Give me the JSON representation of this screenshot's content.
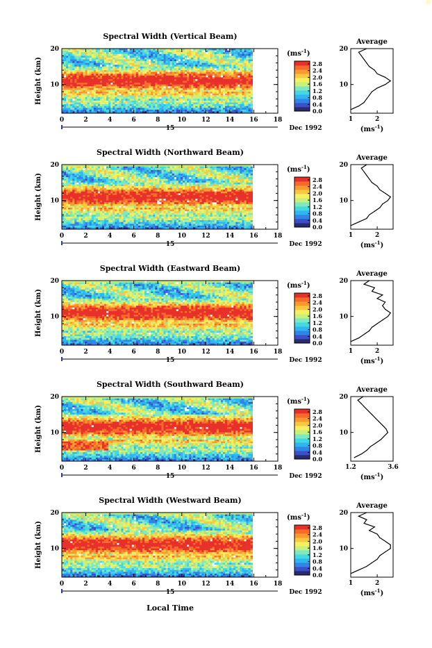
{
  "figure": {
    "xlabel": "Local Time",
    "date_label": "Dec 1992",
    "day_label": "15",
    "cbar_unit": "(ms",
    "cbar_unit_exp": "-1",
    "cbar_unit_close": ")",
    "avg_title": "Average",
    "avg_unit": "(ms",
    "avg_unit_exp": "-1",
    "avg_unit_close": ")",
    "ylabel": "Height (km)"
  },
  "colorbar": {
    "ticks": [
      "2.8",
      "2.4",
      "2.0",
      "1.6",
      "1.2",
      "0.8",
      "0.4",
      "0.0"
    ],
    "colors": [
      "#2a2a6e",
      "#3b4fc8",
      "#2f86e6",
      "#2fb6f0",
      "#44d8e0",
      "#7fe8c0",
      "#c8f07a",
      "#f4f060",
      "#f8c840",
      "#f89a30",
      "#f86a2a",
      "#e8302a"
    ]
  },
  "chart_data": [
    {
      "type": "heatmap",
      "title": "Spectral Width (Vertical Beam)",
      "x_range": [
        0,
        18
      ],
      "x_ticks": [
        "0",
        "2",
        "4",
        "6",
        "8",
        "10",
        "12",
        "14",
        "16",
        "18"
      ],
      "y_range": [
        2,
        20
      ],
      "y_ticks": [
        "10",
        "20"
      ],
      "color_range": [
        0.0,
        3.0
      ],
      "avg_profile": {
        "type": "line",
        "xlim": [
          1,
          2.6
        ],
        "x_ticks": [
          "1",
          "2"
        ],
        "y_ticks": [
          "10",
          "20"
        ],
        "height": [
          3,
          4,
          5,
          6,
          7,
          8,
          9,
          10,
          11,
          12,
          13,
          14,
          15,
          16,
          17,
          18,
          19,
          20
        ],
        "value": [
          1.0,
          1.3,
          1.5,
          1.6,
          1.7,
          1.8,
          2.0,
          2.3,
          2.5,
          2.3,
          2.0,
          1.9,
          1.7,
          1.6,
          1.5,
          1.4,
          1.3,
          1.6
        ]
      }
    },
    {
      "type": "heatmap",
      "title": "Spectral Width (Northward Beam)",
      "x_range": [
        0,
        18
      ],
      "x_ticks": [
        "0",
        "2",
        "4",
        "6",
        "8",
        "10",
        "12",
        "14",
        "16",
        "18"
      ],
      "y_range": [
        2,
        20
      ],
      "y_ticks": [
        "10",
        "20"
      ],
      "color_range": [
        0.0,
        3.0
      ],
      "avg_profile": {
        "type": "line",
        "xlim": [
          1,
          2.6
        ],
        "x_ticks": [
          "1",
          "2"
        ],
        "y_ticks": [
          "10",
          "20"
        ],
        "height": [
          3,
          4,
          5,
          6,
          7,
          8,
          9,
          10,
          11,
          12,
          13,
          14,
          15,
          16,
          17,
          18,
          19,
          20
        ],
        "value": [
          1.0,
          1.3,
          1.6,
          1.7,
          1.9,
          2.1,
          2.2,
          2.4,
          2.5,
          2.3,
          2.1,
          2.0,
          1.8,
          1.7,
          1.6,
          1.5,
          1.4,
          1.6
        ]
      }
    },
    {
      "type": "heatmap",
      "title": "Spectral Width (Eastward Beam)",
      "x_range": [
        0,
        18
      ],
      "x_ticks": [
        "0",
        "2",
        "4",
        "6",
        "8",
        "10",
        "12",
        "14",
        "16",
        "18"
      ],
      "y_range": [
        2,
        20
      ],
      "y_ticks": [
        "10",
        "20"
      ],
      "color_range": [
        0.0,
        3.0
      ],
      "avg_profile": {
        "type": "line",
        "xlim": [
          1,
          2.6
        ],
        "x_ticks": [
          "1",
          "2"
        ],
        "y_ticks": [
          "10",
          "20"
        ],
        "height": [
          3,
          4,
          5,
          6,
          7,
          8,
          9,
          10,
          11,
          12,
          13,
          14,
          15,
          16,
          17,
          18,
          19,
          20
        ],
        "value": [
          1.0,
          1.3,
          1.5,
          1.7,
          1.8,
          2.0,
          2.2,
          2.4,
          2.5,
          2.3,
          2.2,
          2.3,
          2.0,
          2.2,
          1.8,
          1.9,
          1.5,
          1.7
        ]
      }
    },
    {
      "type": "heatmap",
      "title": "Spectral Width (Southward Beam)",
      "x_range": [
        0,
        18
      ],
      "x_ticks": [
        "0",
        "2",
        "4",
        "6",
        "8",
        "10",
        "12",
        "14",
        "16",
        "18"
      ],
      "y_range": [
        2,
        20
      ],
      "y_ticks": [
        "10",
        "20"
      ],
      "color_range": [
        0.0,
        3.0
      ],
      "avg_profile": {
        "type": "line",
        "xlim": [
          1.2,
          3.6
        ],
        "x_ticks": [
          "1.2",
          "3.6"
        ],
        "y_ticks": [
          "10",
          "20"
        ],
        "height": [
          3,
          4,
          5,
          6,
          7,
          8,
          9,
          10,
          11,
          12,
          13,
          14,
          15,
          16,
          17,
          18,
          19,
          20
        ],
        "value": [
          1.4,
          1.8,
          2.1,
          2.3,
          2.6,
          2.9,
          3.1,
          3.3,
          3.2,
          3.0,
          2.8,
          2.6,
          2.4,
          2.2,
          2.0,
          1.8,
          1.6,
          1.9
        ]
      }
    },
    {
      "type": "heatmap",
      "title": "Spectral Width (Westward Beam)",
      "x_range": [
        0,
        18
      ],
      "x_ticks": [
        "0",
        "2",
        "4",
        "6",
        "8",
        "10",
        "12",
        "14",
        "16",
        "18"
      ],
      "y_range": [
        2,
        20
      ],
      "y_ticks": [
        "10",
        "20"
      ],
      "color_range": [
        0.0,
        3.0
      ],
      "avg_profile": {
        "type": "line",
        "xlim": [
          1,
          2.6
        ],
        "x_ticks": [
          "1",
          "2"
        ],
        "y_ticks": [
          "10",
          "20"
        ],
        "height": [
          3,
          4,
          5,
          6,
          7,
          8,
          9,
          10,
          11,
          12,
          13,
          14,
          15,
          16,
          17,
          18,
          19,
          20
        ],
        "value": [
          1.0,
          1.3,
          1.6,
          1.8,
          2.0,
          2.1,
          2.3,
          2.5,
          2.5,
          2.3,
          2.1,
          2.0,
          1.7,
          1.9,
          1.5,
          1.6,
          1.3,
          1.6
        ]
      }
    }
  ]
}
